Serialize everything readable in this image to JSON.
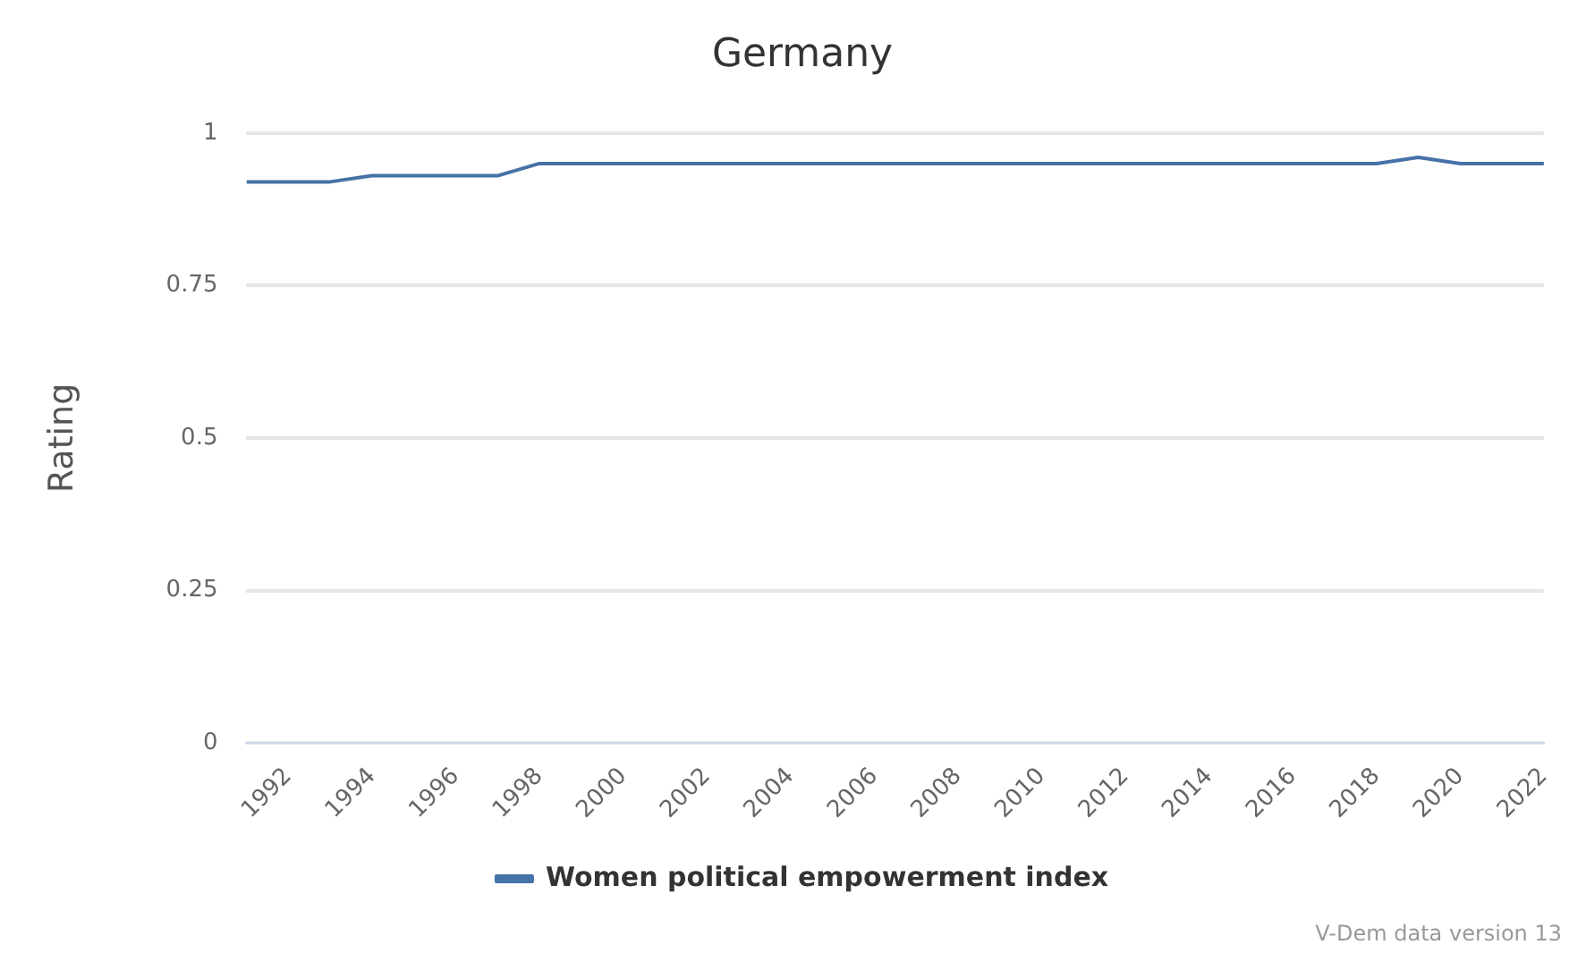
{
  "chart_data": {
    "type": "line",
    "title": "Germany",
    "ylabel": "Rating",
    "x": [
      1991,
      1992,
      1993,
      1994,
      1995,
      1996,
      1997,
      1998,
      1999,
      2000,
      2001,
      2002,
      2003,
      2004,
      2005,
      2006,
      2007,
      2008,
      2009,
      2010,
      2011,
      2012,
      2013,
      2014,
      2015,
      2016,
      2017,
      2018,
      2019,
      2020,
      2021,
      2022
    ],
    "series": [
      {
        "name": "Women political empowerment index",
        "color": "#4572a7",
        "values": [
          0.92,
          0.92,
          0.92,
          0.93,
          0.93,
          0.93,
          0.93,
          0.95,
          0.95,
          0.95,
          0.95,
          0.95,
          0.95,
          0.95,
          0.95,
          0.95,
          0.95,
          0.95,
          0.95,
          0.95,
          0.95,
          0.95,
          0.95,
          0.95,
          0.95,
          0.95,
          0.95,
          0.95,
          0.96,
          0.95,
          0.95,
          0.95
        ]
      }
    ],
    "xlim": [
      1991,
      2022
    ],
    "xticks": [
      1992,
      1994,
      1996,
      1998,
      2000,
      2002,
      2004,
      2006,
      2008,
      2010,
      2012,
      2014,
      2016,
      2018,
      2020,
      2022
    ],
    "ylim": [
      0,
      1
    ],
    "yticks": [
      0,
      0.25,
      0.5,
      0.75,
      1
    ],
    "grid": "y",
    "legend": "bottom",
    "marker": "none",
    "line_style": "solid",
    "annotations": [
      "V-Dem data version 13"
    ]
  }
}
